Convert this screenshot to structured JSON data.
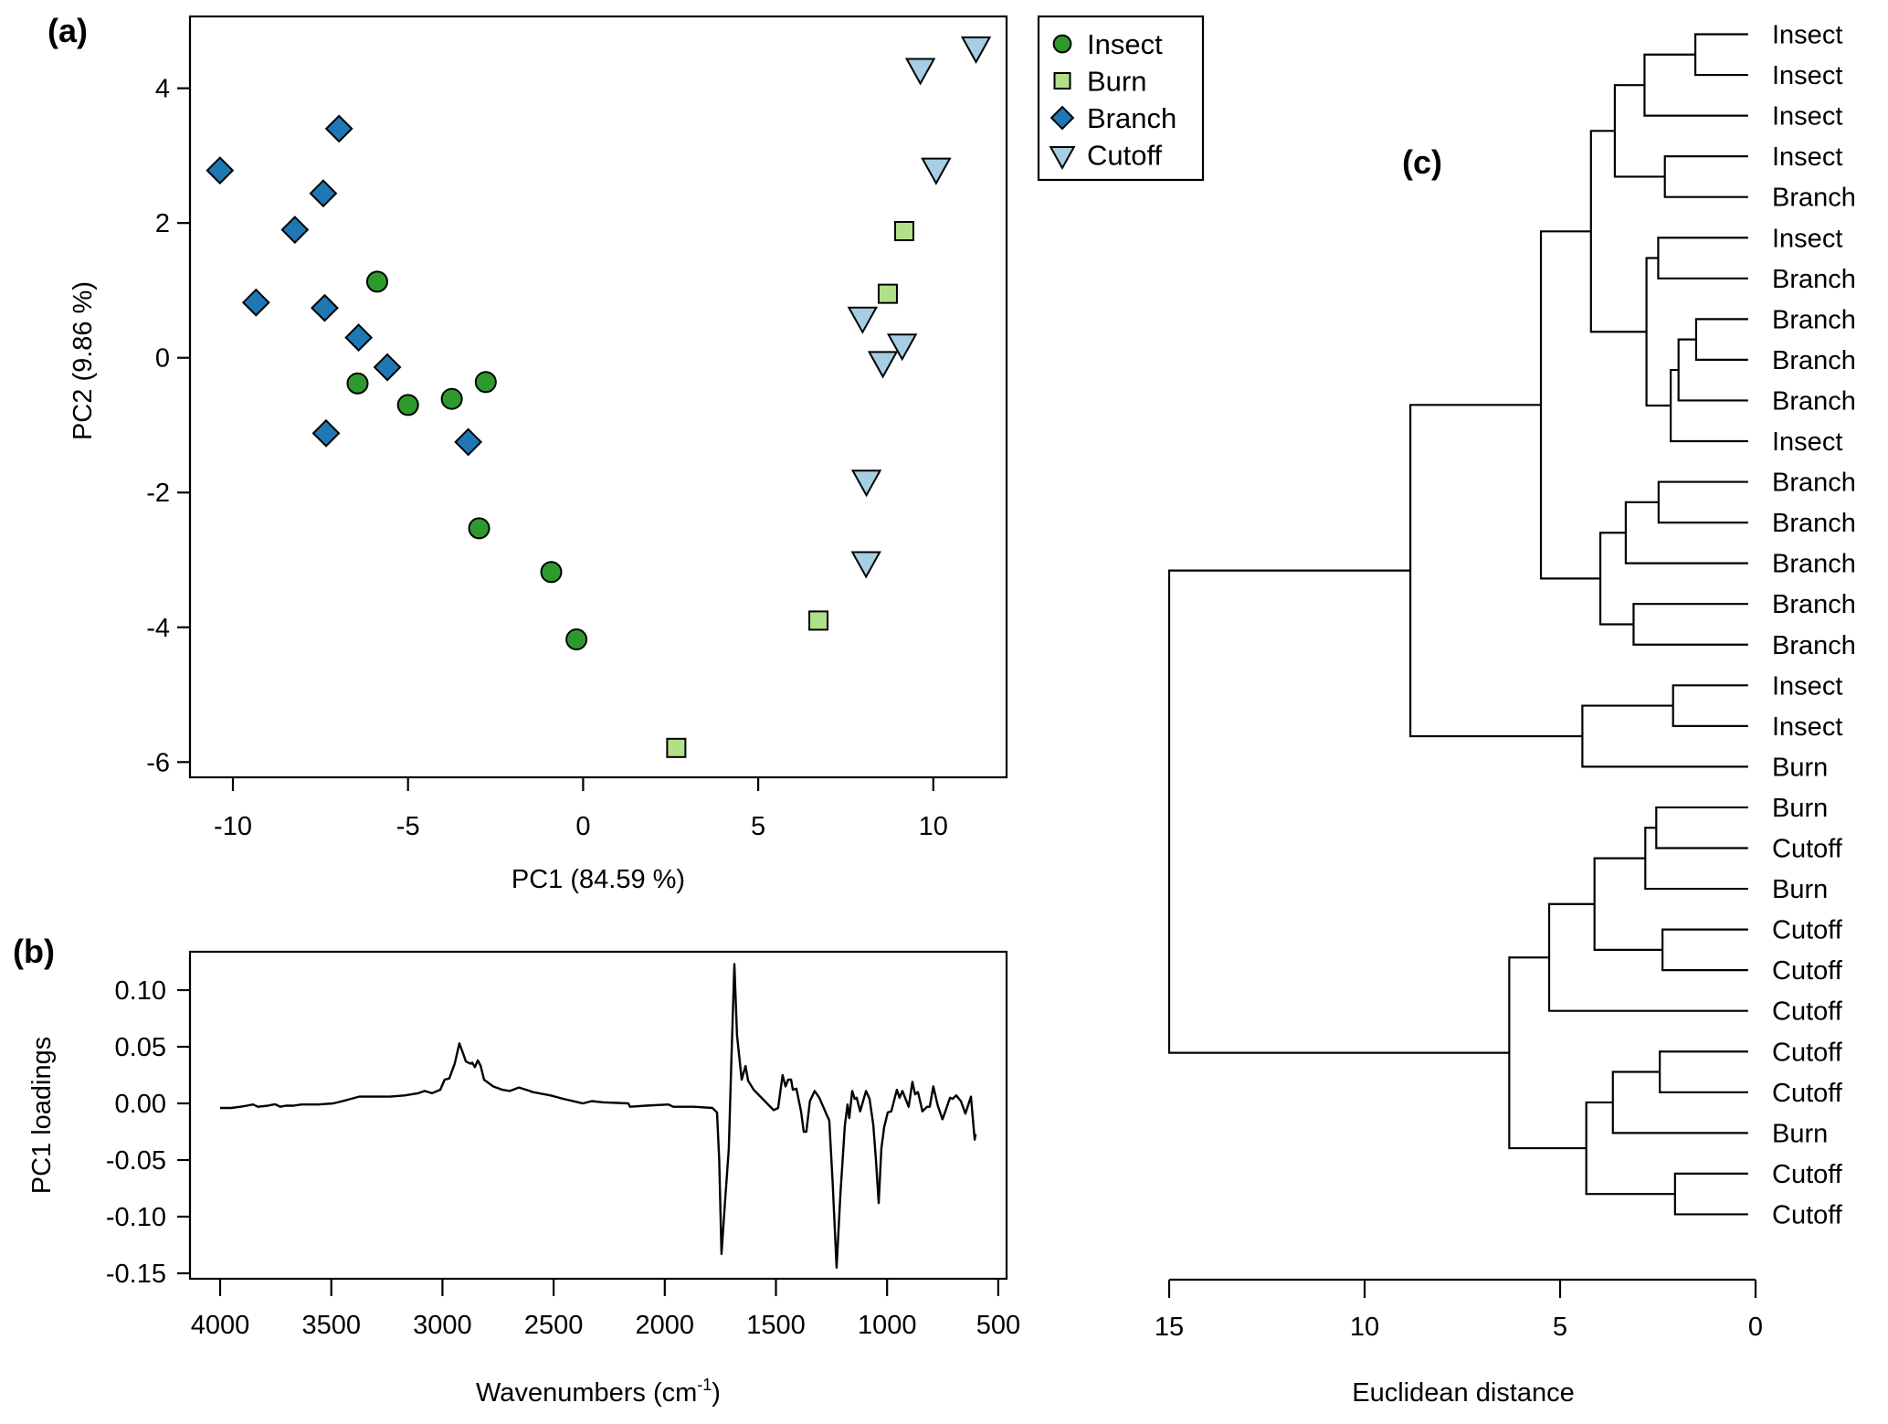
{
  "colors": {
    "Insect": "#2e9a2e",
    "Burn": "#b2df8a",
    "Branch": "#1f78b4",
    "Cutoff": "#a6cee3"
  },
  "chart_data": [
    {
      "panel": "(a)",
      "type": "scatter",
      "title": "",
      "xlabel": "PC1 (84.59 %)",
      "ylabel": "PC2 (9.86 %)",
      "xlim": [
        -11.3,
        12.0
      ],
      "ylim": [
        -6.2,
        5.1
      ],
      "xticks": [
        -10,
        -5,
        0,
        5,
        10
      ],
      "yticks": [
        4,
        2,
        0,
        -2,
        -4,
        -6
      ],
      "xtick_labels": [
        "-10",
        "-5",
        "0",
        "5",
        "10"
      ],
      "ytick_labels": [
        "4",
        "2",
        "0",
        "-2",
        "-4",
        "-6"
      ],
      "grid": false,
      "legend": {
        "placement": "outside-top-right",
        "entries": [
          {
            "label": "Insect",
            "marker": "circle"
          },
          {
            "label": "Burn",
            "marker": "square"
          },
          {
            "label": "Branch",
            "marker": "diamond"
          },
          {
            "label": "Cutoff",
            "marker": "triangle-down"
          }
        ]
      },
      "series": [
        {
          "name": "Insect",
          "marker": "circle",
          "points": [
            [
              -5.88,
              1.13
            ],
            [
              -6.44,
              -0.38
            ],
            [
              -5.0,
              -0.7
            ],
            [
              -3.75,
              -0.61
            ],
            [
              -2.78,
              -0.36
            ],
            [
              -2.97,
              -2.53
            ],
            [
              -0.91,
              -3.18
            ],
            [
              -0.19,
              -4.18
            ]
          ]
        },
        {
          "name": "Burn",
          "marker": "square",
          "points": [
            [
              9.17,
              1.88
            ],
            [
              8.7,
              0.95
            ],
            [
              6.72,
              -3.9
            ],
            [
              2.66,
              -5.79
            ]
          ]
        },
        {
          "name": "Branch",
          "marker": "diamond",
          "points": [
            [
              -10.37,
              2.78
            ],
            [
              -6.97,
              3.4
            ],
            [
              -7.42,
              2.44
            ],
            [
              -8.23,
              1.9
            ],
            [
              -9.34,
              0.82
            ],
            [
              -7.38,
              0.74
            ],
            [
              -6.41,
              0.3
            ],
            [
              -5.59,
              -0.14
            ],
            [
              -7.34,
              -1.12
            ],
            [
              -3.28,
              -1.25
            ]
          ]
        },
        {
          "name": "Cutoff",
          "marker": "triangle-down",
          "points": [
            [
              11.22,
              4.62
            ],
            [
              9.63,
              4.3
            ],
            [
              10.08,
              2.82
            ],
            [
              7.98,
              0.61
            ],
            [
              9.11,
              0.21
            ],
            [
              8.56,
              -0.05
            ],
            [
              8.09,
              -1.81
            ],
            [
              8.08,
              -3.02
            ]
          ]
        }
      ]
    },
    {
      "panel": "(b)",
      "type": "line",
      "title": "",
      "xlabel": "Wavenumbers (cm",
      "xlabel_sup": "-1",
      "xlabel_end": ")",
      "ylabel": "PC1 loadings",
      "xlim": [
        4135,
        460
      ],
      "ylim": [
        -0.153,
        0.134
      ],
      "xticks": [
        4000,
        3500,
        3000,
        2500,
        2000,
        1500,
        1000,
        500
      ],
      "yticks": [
        0.1,
        0.05,
        0.0,
        -0.05,
        -0.1,
        -0.15
      ],
      "xtick_labels": [
        "4000",
        "3500",
        "3000",
        "2500",
        "2000",
        "1500",
        "1000",
        "500"
      ],
      "ytick_labels": [
        "0.10",
        "0.05",
        "0.00",
        "-0.05",
        "-0.10",
        "-0.15"
      ],
      "grid": false,
      "series": [
        {
          "name": "PC1 loadings",
          "x": [
            4000,
            3950,
            3909,
            3880,
            3852,
            3830,
            3785,
            3760,
            3750,
            3730,
            3704,
            3670,
            3634,
            3560,
            3491,
            3430,
            3375,
            3300,
            3236,
            3170,
            3108,
            3080,
            3047,
            3010,
            2990,
            2969,
            2945,
            2924,
            2905,
            2895,
            2874,
            2866,
            2854,
            2841,
            2828,
            2813,
            2772,
            2730,
            2697,
            2656,
            2607,
            2595,
            2513,
            2457,
            2369,
            2328,
            2279,
            2164,
            2156,
            2086,
            1983,
            1962,
            1868,
            1786,
            1765,
            1755,
            1745,
            1730,
            1712,
            1700,
            1687,
            1675,
            1654,
            1637,
            1625,
            1600,
            1560,
            1530,
            1510,
            1490,
            1470,
            1457,
            1445,
            1432,
            1424,
            1408,
            1387,
            1375,
            1363,
            1347,
            1326,
            1305,
            1272,
            1260,
            1245,
            1227,
            1210,
            1190,
            1178,
            1170,
            1157,
            1146,
            1137,
            1121,
            1095,
            1079,
            1062,
            1050,
            1038,
            1026,
            1013,
            997,
            981,
            956,
            944,
            931,
            903,
            886,
            874,
            861,
            841,
            820,
            808,
            792,
            772,
            751,
            738,
            717,
            705,
            689,
            668,
            648,
            623,
            606,
            602
          ],
          "y": [
            -0.004,
            -0.004,
            -0.003,
            -0.002,
            -0.001,
            -0.003,
            -0.002,
            -0.001,
            -0.001,
            -0.003,
            -0.002,
            -0.002,
            -0.001,
            -0.001,
            0.0,
            0.003,
            0.006,
            0.006,
            0.006,
            0.007,
            0.009,
            0.011,
            0.009,
            0.012,
            0.021,
            0.022,
            0.035,
            0.053,
            0.043,
            0.037,
            0.035,
            0.036,
            0.032,
            0.038,
            0.033,
            0.021,
            0.015,
            0.012,
            0.011,
            0.014,
            0.011,
            0.01,
            0.007,
            0.004,
            0.0,
            0.002,
            0.001,
            0.0,
            -0.003,
            -0.002,
            -0.001,
            -0.003,
            -0.003,
            -0.004,
            -0.008,
            -0.05,
            -0.133,
            -0.09,
            -0.04,
            0.04,
            0.123,
            0.06,
            0.021,
            0.033,
            0.02,
            0.012,
            0.004,
            -0.002,
            -0.006,
            -0.004,
            0.025,
            0.015,
            0.021,
            0.021,
            0.012,
            0.013,
            -0.007,
            -0.025,
            -0.025,
            0.002,
            0.011,
            0.005,
            -0.01,
            -0.015,
            -0.07,
            -0.145,
            -0.08,
            -0.019,
            -0.001,
            -0.013,
            0.011,
            0.004,
            0.005,
            -0.007,
            0.011,
            0.004,
            -0.019,
            -0.05,
            -0.088,
            -0.04,
            -0.021,
            -0.008,
            -0.007,
            0.012,
            0.005,
            0.011,
            -0.003,
            0.019,
            0.008,
            0.01,
            -0.007,
            -0.003,
            -0.003,
            0.015,
            -0.002,
            -0.014,
            -0.007,
            0.005,
            0.004,
            0.007,
            0.002,
            -0.009,
            0.006,
            -0.032,
            -0.027
          ]
        }
      ]
    },
    {
      "panel": "(c)",
      "type": "dendrogram",
      "title": "",
      "xlabel": "Euclidean distance",
      "xlim": [
        15,
        0
      ],
      "xticks": [
        15,
        10,
        5,
        0
      ],
      "xtick_labels": [
        "15",
        "10",
        "5",
        "0"
      ],
      "grid": false,
      "leaves": [
        "Insect",
        "Insect",
        "Insect",
        "Insect",
        "Branch",
        "Insect",
        "Branch",
        "Branch",
        "Branch",
        "Branch",
        "Insect",
        "Branch",
        "Branch",
        "Branch",
        "Branch",
        "Branch",
        "Insect",
        "Insect",
        "Burn",
        "Burn",
        "Cutoff",
        "Burn",
        "Cutoff",
        "Cutoff",
        "Cutoff",
        "Cutoff",
        "Cutoff",
        "Burn",
        "Cutoff",
        "Cutoff"
      ],
      "leaf_height": 0.19,
      "merges": [
        {
          "id": "m1",
          "left": 0,
          "right": 1,
          "height": 1.54
        },
        {
          "id": "m2",
          "left": "m1",
          "right": 2,
          "height": 2.84
        },
        {
          "id": "m3",
          "left": 3,
          "right": 4,
          "height": 2.32
        },
        {
          "id": "m4",
          "left": "m2",
          "right": "m3",
          "height": 3.6
        },
        {
          "id": "m5",
          "left": 5,
          "right": 6,
          "height": 2.49
        },
        {
          "id": "m6",
          "left": 7,
          "right": 8,
          "height": 1.52
        },
        {
          "id": "m7",
          "left": "m6",
          "right": 9,
          "height": 1.97
        },
        {
          "id": "m8",
          "left": "m7",
          "right": 10,
          "height": 2.17
        },
        {
          "id": "m9",
          "left": "m5",
          "right": "m8",
          "height": 2.79
        },
        {
          "id": "m10",
          "left": "m4",
          "right": "m9",
          "height": 4.21
        },
        {
          "id": "m11",
          "left": 11,
          "right": 12,
          "height": 2.48
        },
        {
          "id": "m12",
          "left": "m11",
          "right": 13,
          "height": 3.32
        },
        {
          "id": "m13",
          "left": 14,
          "right": 15,
          "height": 3.12
        },
        {
          "id": "m14",
          "left": "m12",
          "right": "m13",
          "height": 3.97
        },
        {
          "id": "m15",
          "left": "m10",
          "right": "m14",
          "height": 5.49
        },
        {
          "id": "m16",
          "left": 16,
          "right": 17,
          "height": 2.11
        },
        {
          "id": "m17",
          "left": "m16",
          "right": 18,
          "height": 4.43
        },
        {
          "id": "m18",
          "left": "m15",
          "right": "m17",
          "height": 8.83
        },
        {
          "id": "m19",
          "left": 19,
          "right": 20,
          "height": 2.54
        },
        {
          "id": "m20",
          "left": "m19",
          "right": 21,
          "height": 2.82
        },
        {
          "id": "m21",
          "left": 22,
          "right": 23,
          "height": 2.38
        },
        {
          "id": "m22",
          "left": "m20",
          "right": "m21",
          "height": 4.12
        },
        {
          "id": "m23",
          "left": "m22",
          "right": 24,
          "height": 5.28
        },
        {
          "id": "m24",
          "left": 25,
          "right": 26,
          "height": 2.45
        },
        {
          "id": "m25",
          "left": "m24",
          "right": 27,
          "height": 3.65
        },
        {
          "id": "m26",
          "left": 28,
          "right": 29,
          "height": 2.06
        },
        {
          "id": "m27",
          "left": "m25",
          "right": "m26",
          "height": 4.33
        },
        {
          "id": "m28",
          "left": "m23",
          "right": "m27",
          "height": 6.3
        },
        {
          "id": "m29",
          "left": "m18",
          "right": "m28",
          "height": 15.0
        }
      ]
    }
  ]
}
